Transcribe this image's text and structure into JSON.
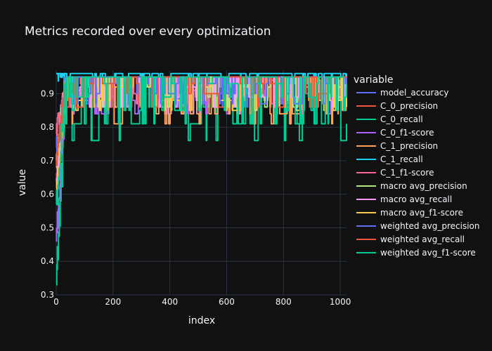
{
  "chart_data": {
    "type": "line",
    "title": "Metrics recorded over every optimization",
    "xlabel": "index",
    "ylabel": "value",
    "xlim": [
      0,
      1022
    ],
    "ylim": [
      0.3,
      0.97
    ],
    "x_ticks": [
      0,
      200,
      400,
      600,
      800,
      1000
    ],
    "x_tick_labels": [
      "0",
      "200",
      "400",
      "600",
      "800",
      "1000"
    ],
    "y_ticks": [
      0.3,
      0.4,
      0.5,
      0.6,
      0.7,
      0.8,
      0.9
    ],
    "y_tick_labels": [
      "0.3",
      "0.4",
      "0.5",
      "0.6",
      "0.7",
      "0.8",
      "0.9"
    ],
    "grid": true,
    "legend_title": "variable",
    "legend_position": "right",
    "series": [
      {
        "name": "model_accuracy",
        "color": "#636efa",
        "levels": [
          0.86,
          0.9,
          0.93,
          0.95
        ],
        "start": 0.7
      },
      {
        "name": "C_0_precision",
        "color": "#ef553b",
        "levels": [
          0.93,
          0.94,
          0.95
        ],
        "start": 0.62
      },
      {
        "name": "C_0_recall",
        "color": "#00cc96",
        "levels": [
          0.76,
          0.81,
          0.86,
          0.9,
          0.95
        ],
        "start": 0.33
      },
      {
        "name": "C_0_f1-score",
        "color": "#ab63fa",
        "levels": [
          0.84,
          0.88,
          0.91,
          0.94
        ],
        "start": 0.46
      },
      {
        "name": "C_1_precision",
        "color": "#ffa15a",
        "levels": [
          0.81,
          0.84,
          0.88,
          0.92,
          0.95
        ],
        "start": 0.68
      },
      {
        "name": "C_1_recall",
        "color": "#19d3f3",
        "levels": [
          0.93,
          0.96
        ],
        "start": 0.96
      },
      {
        "name": "C_1_f1-score",
        "color": "#ff6692",
        "levels": [
          0.87,
          0.9,
          0.93,
          0.95
        ],
        "start": 0.78
      },
      {
        "name": "macro avg_precision",
        "color": "#b6e880",
        "levels": [
          0.86,
          0.89,
          0.92,
          0.95
        ],
        "start": 0.72
      },
      {
        "name": "macro avg_recall",
        "color": "#ff97ff",
        "levels": [
          0.86,
          0.89,
          0.92,
          0.95
        ],
        "start": 0.64
      },
      {
        "name": "macro avg_f1-score",
        "color": "#fecb52",
        "levels": [
          0.85,
          0.88,
          0.92,
          0.95
        ],
        "start": 0.6
      },
      {
        "name": "weighted avg_precision",
        "color": "#636efa",
        "levels": [
          0.87,
          0.9,
          0.93,
          0.95
        ],
        "start": 0.74
      },
      {
        "name": "weighted avg_recall",
        "color": "#ef553b",
        "levels": [
          0.86,
          0.9,
          0.93,
          0.95
        ],
        "start": 0.7
      },
      {
        "name": "weighted avg_f1-score",
        "color": "#00cc96",
        "levels": [
          0.81,
          0.85,
          0.89,
          0.93,
          0.95
        ],
        "start": 0.57
      }
    ]
  }
}
